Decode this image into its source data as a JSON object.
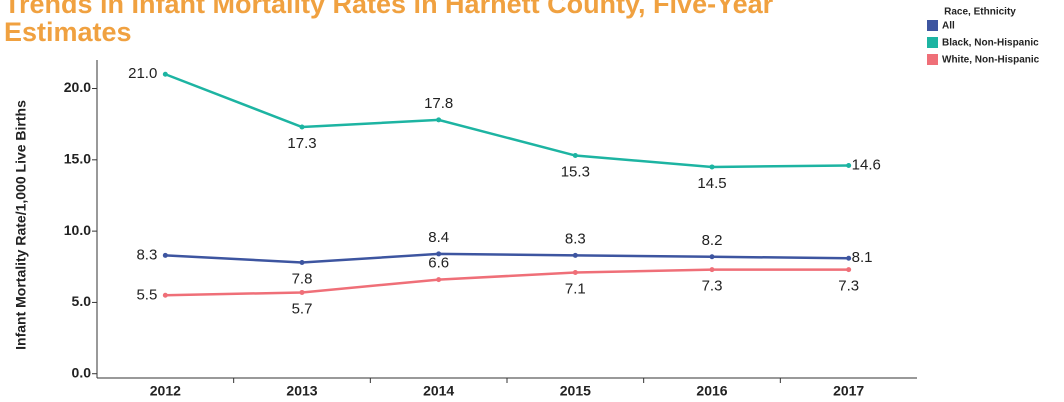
{
  "chart_data": {
    "type": "line",
    "title": "Trends in Infant Mortality Rates in Harnett County, Five-Year Estimates",
    "y_label": "Infant Mortality Rate/1,000 Live Births",
    "legend_title": "Race, Ethnicity",
    "legend": "top-right",
    "categories": [
      "2012",
      "2013",
      "2014",
      "2015",
      "2016",
      "2017"
    ],
    "series": [
      {
        "name": "All",
        "color": "#3d55a0",
        "values": [
          8.3,
          7.8,
          8.4,
          8.3,
          8.2,
          8.1
        ],
        "value_labels": [
          "8.3",
          "7.8",
          "8.4",
          "8.3",
          "8.2",
          "8.1"
        ]
      },
      {
        "name": "Black, Non-Hispanic",
        "color": "#1db4a2",
        "values": [
          21.0,
          17.3,
          17.8,
          15.3,
          14.5,
          14.6
        ],
        "value_labels": [
          "21.0",
          "17.3",
          "17.8",
          "15.3",
          "14.5",
          "14.6"
        ]
      },
      {
        "name": "White, Non-Hispanic",
        "color": "#ef6f78",
        "values": [
          5.5,
          5.7,
          6.6,
          7.1,
          7.3,
          7.3
        ],
        "value_labels": [
          "5.5",
          "5.7",
          "6.6",
          "7.1",
          "7.3",
          "7.3"
        ]
      }
    ],
    "ylim": [
      -0.3,
      22
    ],
    "yticks": [
      {
        "value": 0,
        "label": "0.0"
      },
      {
        "value": 5,
        "label": "5.0"
      },
      {
        "value": 10,
        "label": "10.0"
      },
      {
        "value": 15,
        "label": "15.0"
      },
      {
        "value": 20,
        "label": "20.0"
      }
    ]
  }
}
